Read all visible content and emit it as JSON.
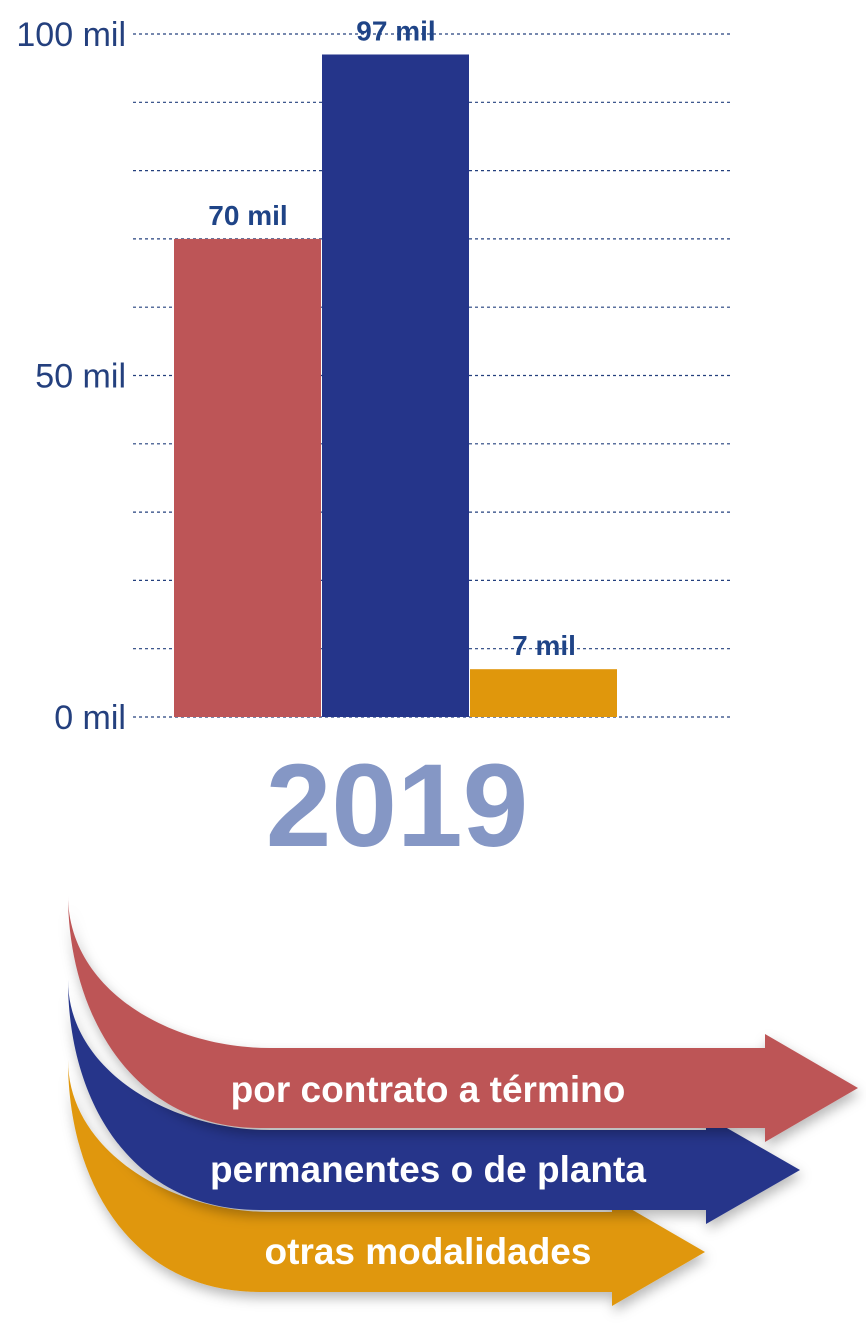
{
  "chart_data": {
    "type": "bar",
    "categories": [
      "2019"
    ],
    "series": [
      {
        "name": "por contrato a término",
        "values": [
          70
        ],
        "label": "70 mil",
        "color": "#bd5557"
      },
      {
        "name": "permanentes o de planta",
        "values": [
          97
        ],
        "label": "97 mil",
        "color": "#25358a"
      },
      {
        "name": "otras modalidades",
        "values": [
          7
        ],
        "label": "7 mil",
        "color": "#e0970c"
      }
    ],
    "ylim": [
      0,
      100
    ],
    "yticks": [
      {
        "value": 0,
        "label": "0 mil"
      },
      {
        "value": 50,
        "label": "50 mil"
      },
      {
        "value": 100,
        "label": "100 mil"
      }
    ],
    "grid": true,
    "grid_step": 10,
    "grid_color": "#24407e",
    "legend_placement": "bottom",
    "year_color": "#8597c5"
  }
}
